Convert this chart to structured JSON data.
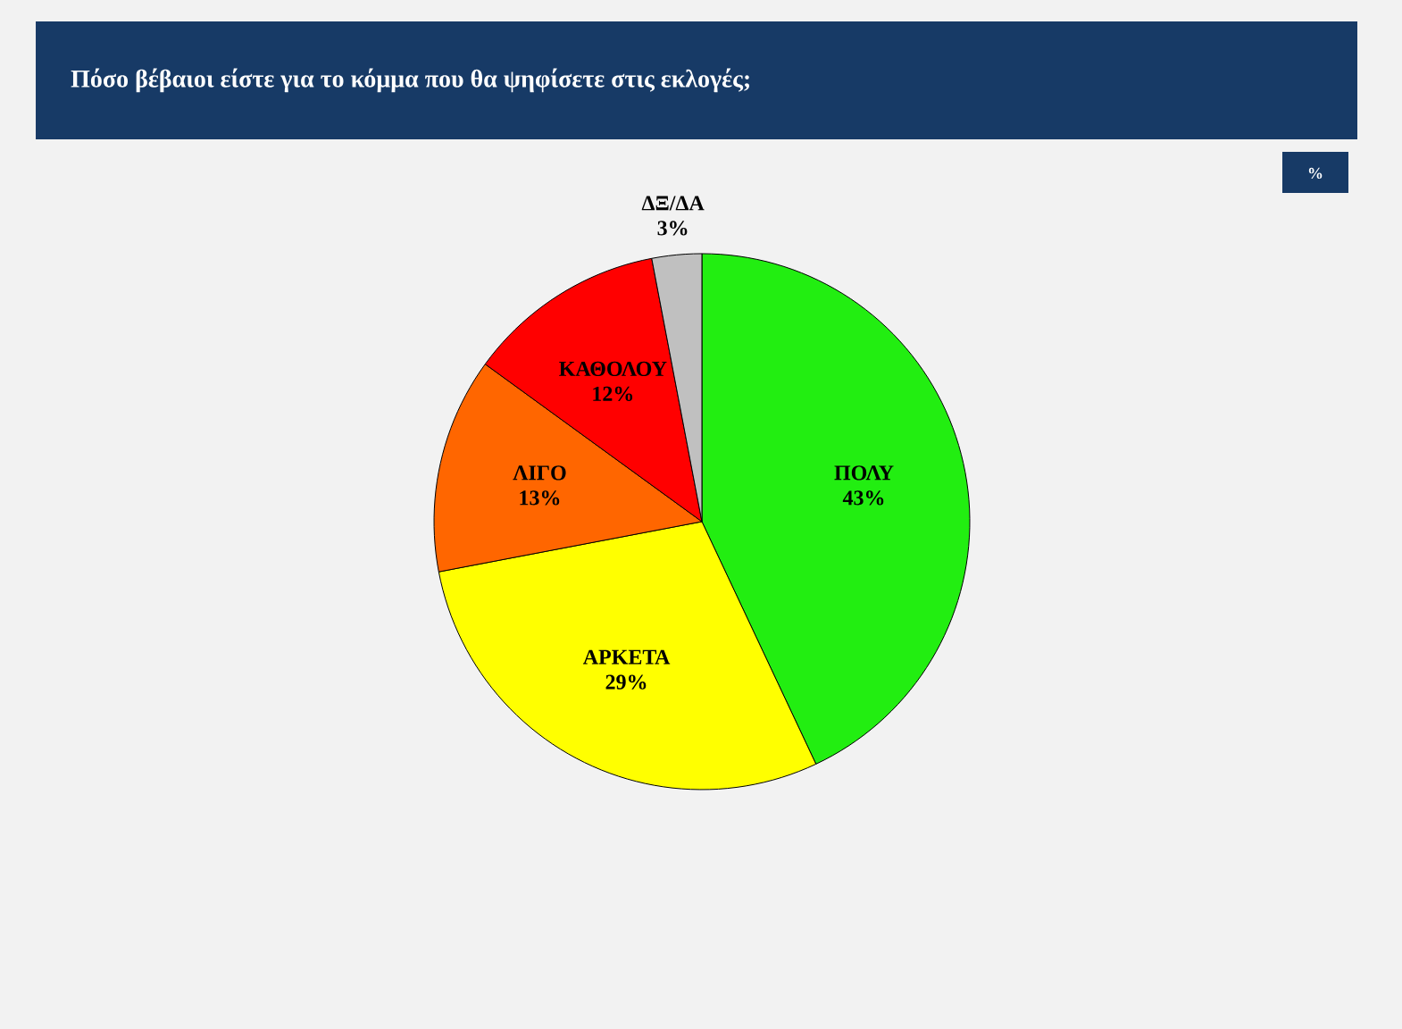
{
  "chart_data": {
    "type": "pie",
    "title": "Πόσο βέβαιοι είστε για το κόμμα που θα ψηφίσετε στις εκλογές;",
    "categories": [
      "ΠΟΛΥ",
      "ΑΡΚΕΤΑ",
      "ΛΙΓΟ",
      "ΚΑΘΟΛΟΥ",
      "ΔΞ/ΔΑ"
    ],
    "values": [
      43,
      29,
      13,
      12,
      3
    ],
    "value_labels": [
      "43%",
      "29%",
      "13%",
      "12%",
      "3%"
    ],
    "colors": [
      "#22ee11",
      "#ffff00",
      "#ff6600",
      "#ff0000",
      "#c0c0c0"
    ],
    "annotations": [
      "%"
    ]
  }
}
